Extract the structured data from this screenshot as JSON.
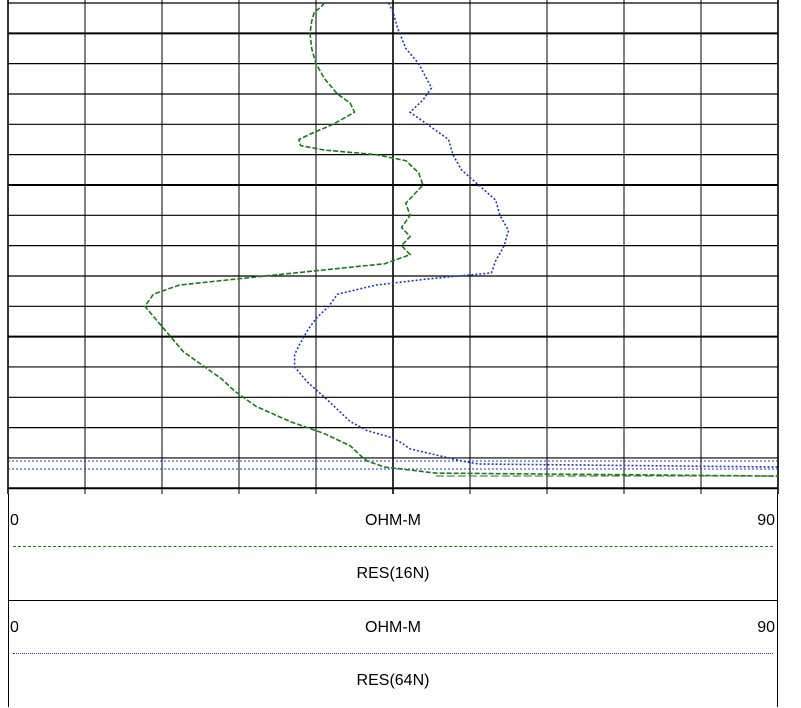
{
  "chart_data": {
    "type": "line",
    "title": "",
    "grid": true,
    "xlim": [
      0,
      90
    ],
    "series": [
      {
        "name": "RES(16N)",
        "unit": "OHM-M",
        "scale_min": "0",
        "scale_max": "90",
        "color": "#1a7a1a",
        "style": "dashed",
        "x": [
          37,
          36.5,
          35.8,
          35.5,
          35.3,
          35.5,
          36,
          37,
          38.5,
          40,
          40.5,
          38,
          35.5,
          34,
          34.2,
          37,
          43,
          46.5,
          48,
          48.5,
          47.5,
          46.5,
          47,
          46,
          47,
          46,
          47,
          44,
          30,
          20,
          17,
          16,
          17.5,
          19,
          20.5,
          23,
          25,
          26.5,
          29,
          33,
          37,
          40,
          41.5,
          42,
          44,
          50,
          90
        ],
        "y": [
          0,
          0.15,
          0.3,
          0.6,
          1.0,
          1.5,
          2.0,
          2.5,
          3.0,
          3.3,
          3.6,
          4.0,
          4.3,
          4.5,
          4.7,
          4.85,
          5.0,
          5.2,
          5.6,
          6.0,
          6.3,
          6.6,
          7.0,
          7.4,
          7.7,
          8.0,
          8.3,
          8.6,
          9.0,
          9.3,
          9.6,
          10.0,
          10.5,
          11.0,
          11.5,
          12.0,
          12.4,
          12.8,
          13.3,
          13.8,
          14.2,
          14.6,
          15.0,
          15.1,
          15.3,
          15.5,
          15.6
        ]
      },
      {
        "name": "RES(64N)",
        "unit": "OHM-M",
        "scale_min": "0",
        "scale_max": "90",
        "color": "#2233cc",
        "style": "dotted",
        "x": [
          44.5,
          45,
          45.5,
          46.5,
          48,
          49.5,
          48.5,
          47,
          49,
          51.5,
          52,
          53,
          55,
          57,
          57.5,
          58.5,
          58,
          57,
          56.5,
          49,
          43,
          38.5,
          37.5,
          36,
          35,
          34,
          33.5,
          33.5,
          35,
          37,
          38.5,
          40,
          42,
          44.5,
          46,
          47,
          50,
          53,
          55,
          90
        ],
        "y": [
          0,
          0.3,
          0.8,
          1.5,
          2.0,
          2.8,
          3.2,
          3.6,
          4.0,
          4.5,
          5.0,
          5.5,
          6.0,
          6.5,
          7.0,
          7.5,
          8.0,
          8.5,
          8.9,
          9.1,
          9.3,
          9.6,
          10.0,
          10.4,
          10.8,
          11.3,
          11.6,
          12.0,
          12.5,
          13.0,
          13.4,
          13.8,
          14.1,
          14.3,
          14.5,
          14.7,
          14.9,
          15.1,
          15.2,
          15.3
        ]
      }
    ]
  }
}
